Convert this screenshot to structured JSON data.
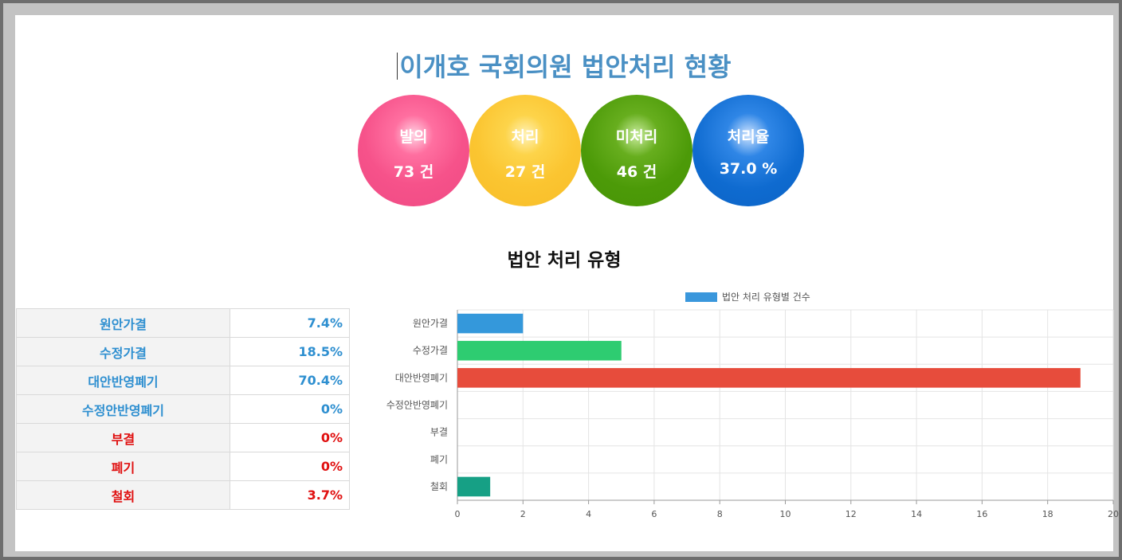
{
  "title": "이개호 국회의원 법안처리 현황",
  "stats": [
    {
      "label": "발의",
      "value": "73 건",
      "color": "#f6528a"
    },
    {
      "label": "처리",
      "value": "27 건",
      "color": "#fbc531"
    },
    {
      "label": "미처리",
      "value": "46 건",
      "color": "#4c9a08"
    },
    {
      "label": "처리율",
      "value": "37.0 %",
      "color": "#0f6bd0"
    }
  ],
  "section_title": "법안 처리 유형",
  "types_table": [
    {
      "name": "원안가결",
      "pct": "7.4%",
      "color": "#2e8fd0"
    },
    {
      "name": "수정가결",
      "pct": "18.5%",
      "color": "#2e8fd0"
    },
    {
      "name": "대안반영폐기",
      "pct": "70.4%",
      "color": "#2e8fd0"
    },
    {
      "name": "수정안반영폐기",
      "pct": "0%",
      "color": "#2e8fd0"
    },
    {
      "name": "부결",
      "pct": "0%",
      "color": "#e01010"
    },
    {
      "name": "폐기",
      "pct": "0%",
      "color": "#e01010"
    },
    {
      "name": "철회",
      "pct": "3.7%",
      "color": "#e01010"
    }
  ],
  "chart_data": {
    "type": "bar",
    "orientation": "horizontal",
    "categories": [
      "원안가결",
      "수정가결",
      "대안반영폐기",
      "수정안반영폐기",
      "부결",
      "폐기",
      "철회"
    ],
    "series": [
      {
        "name": "법안 처리 유형별 건수",
        "values": [
          2,
          5,
          19,
          0,
          0,
          0,
          1
        ]
      }
    ],
    "bar_colors": [
      "#3498db",
      "#2ecc71",
      "#e74c3c",
      "#9b59b6",
      "#f1c40f",
      "#e67e22",
      "#16a085"
    ],
    "legend_color": "#3a97dc",
    "xlim": [
      0,
      20
    ],
    "xticks": [
      0,
      2,
      4,
      6,
      8,
      10,
      12,
      14,
      16,
      18,
      20
    ],
    "grid": true,
    "legend": "top-center"
  }
}
